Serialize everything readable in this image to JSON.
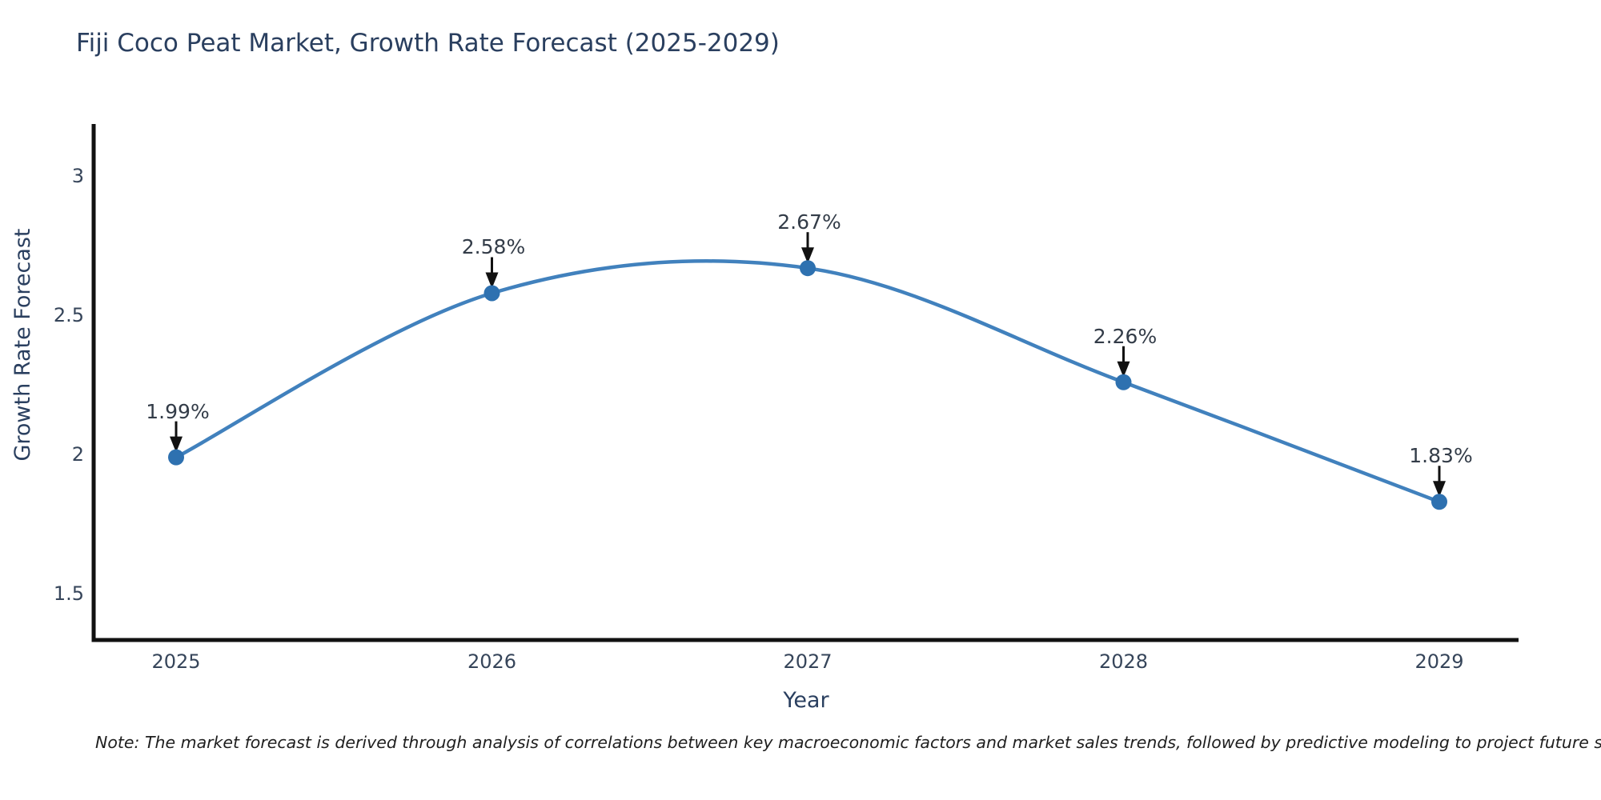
{
  "title": "Fiji Coco Peat Market, Growth Rate Forecast (2025-2029)",
  "note": "Note: The market forecast is derived through analysis of correlations between key macroeconomic factors and market sales trends, followed by predictive modeling to project future sales",
  "colors": {
    "line": "#4181bd",
    "marker": "#2e71b0",
    "axis": "#111111",
    "arrow": "#111111",
    "title_text": "#2a3f5f",
    "tick_text": "#36455a",
    "annotation_text": "#333c48"
  },
  "chart_data": {
    "type": "line",
    "title": "Fiji Coco Peat Market, Growth Rate Forecast (2025-2029)",
    "x": [
      "2025",
      "2026",
      "2027",
      "2028",
      "2029"
    ],
    "series": [
      {
        "name": "Growth Rate Forecast",
        "values": [
          1.99,
          2.58,
          2.67,
          2.26,
          1.83
        ]
      }
    ],
    "annotations": [
      "1.99%",
      "2.58%",
      "2.67%",
      "2.26%",
      "1.83%"
    ],
    "xlabel": "Year",
    "ylabel": "Growth Rate Forecast",
    "yticks": [
      3,
      2.5,
      2,
      1.5
    ],
    "ylim": [
      1.33,
      3.19
    ],
    "line_shape": "spline",
    "grid": false,
    "legend": false,
    "markers": true,
    "annotation_arrows": true
  }
}
